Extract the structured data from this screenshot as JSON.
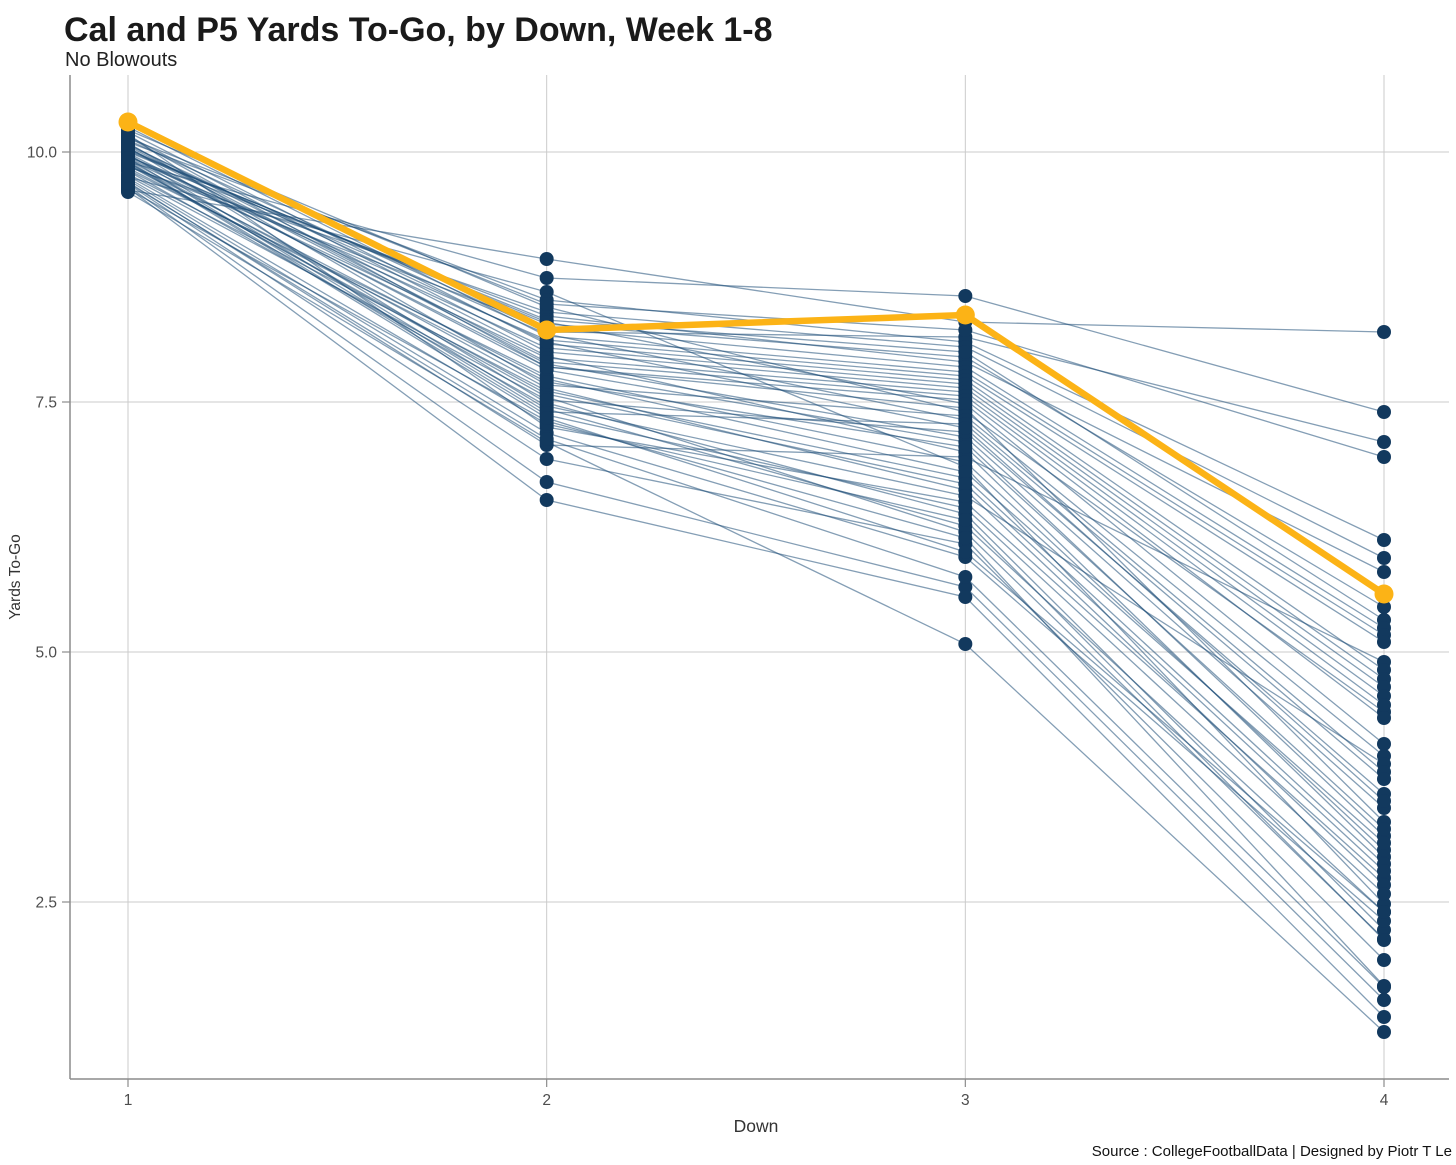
{
  "header": {
    "title": "Cal and P5 Yards To-Go, by Down, Week 1-8",
    "subtitle": "No Blowouts"
  },
  "footer": {
    "source": "Source : CollegeFootballData | Designed by Piotr T Le"
  },
  "colors": {
    "cal_gold": "#FCB316",
    "navy_dot": "#12395E",
    "p5_line": "#1F4E79",
    "grid": "#CBCBCB",
    "axis": "#8C8C8C",
    "title_text": "#1A1A1A",
    "subtitle_text": "#222222",
    "axis_text": "#4D4D4D",
    "axis_title_text": "#333333"
  },
  "chart_data": {
    "type": "line",
    "variant": "slopegraph-multiseries",
    "title": "Cal and P5 Yards To-Go, by Down, Week 1-8",
    "subtitle": "No Blowouts",
    "xlabel": "Down",
    "ylabel": "Yards To-Go",
    "legend": "none",
    "grid": "major gridlines, white background",
    "x": [
      1,
      2,
      3,
      4
    ],
    "x_tick_labels": [
      "1",
      "2",
      "3",
      "4"
    ],
    "y_ticks": [
      10.0,
      7.5,
      5.0,
      2.5
    ],
    "y_tick_labels": [
      "10.0",
      "7.5",
      "5.0",
      "2.5"
    ],
    "ylim": [
      0.73,
      10.77
    ],
    "highlight_series": {
      "name": "Cal",
      "color": "#FCB316",
      "values": [
        10.3,
        8.22,
        8.37,
        5.58
      ]
    },
    "series": [
      {
        "values": [
          10.22,
          8.45,
          7.4,
          4.4
        ]
      },
      {
        "values": [
          9.62,
          8.93,
          8.3,
          8.2
        ]
      },
      {
        "values": [
          10.18,
          7.25,
          6.5,
          2.74
        ]
      },
      {
        "values": [
          9.9,
          8.74,
          8.56,
          7.4
        ]
      },
      {
        "values": [
          10.15,
          7.85,
          7.44,
          3.3
        ]
      },
      {
        "values": [
          9.75,
          8.6,
          6.85,
          2.48
        ]
      },
      {
        "values": [
          10.12,
          8.2,
          8.15,
          7.1
        ]
      },
      {
        "values": [
          9.88,
          7.55,
          6.2,
          2.13
        ]
      },
      {
        "values": [
          10.1,
          8.52,
          8.1,
          6.12
        ]
      },
      {
        "values": [
          9.7,
          7.07,
          6.95,
          4.9
        ]
      },
      {
        "values": [
          10.08,
          7.96,
          7.0,
          2.95
        ]
      },
      {
        "values": [
          9.85,
          8.4,
          8.05,
          5.94
        ]
      },
      {
        "values": [
          10.05,
          7.49,
          6.38,
          2.22
        ]
      },
      {
        "values": [
          9.95,
          8.36,
          7.9,
          5.8
        ]
      },
      {
        "values": [
          10.04,
          7.88,
          7.15,
          3.44
        ]
      },
      {
        "values": [
          9.68,
          6.93,
          6.08,
          1.92
        ]
      },
      {
        "values": [
          10.02,
          8.28,
          7.95,
          5.45
        ]
      },
      {
        "values": [
          9.92,
          7.64,
          6.62,
          2.67
        ]
      },
      {
        "values": [
          10.0,
          8.32,
          8.0,
          5.32
        ]
      },
      {
        "values": [
          9.66,
          6.7,
          5.65,
          1.52
        ]
      },
      {
        "values": [
          9.99,
          7.82,
          7.1,
          3.16
        ]
      },
      {
        "values": [
          9.86,
          8.24,
          7.85,
          5.24
        ]
      },
      {
        "values": [
          10.25,
          8.16,
          7.8,
          5.17
        ]
      },
      {
        "values": [
          9.64,
          6.52,
          5.55,
          1.35
        ]
      },
      {
        "values": [
          9.98,
          7.43,
          6.26,
          2.4
        ]
      },
      {
        "values": [
          9.94,
          8.12,
          7.76,
          5.1
        ]
      },
      {
        "values": [
          9.72,
          7.19,
          5.95,
          2.31
        ]
      },
      {
        "values": [
          10.2,
          8.08,
          7.72,
          4.82
        ]
      },
      {
        "values": [
          9.63,
          7.31,
          6.14,
          1.66
        ]
      },
      {
        "values": [
          9.96,
          8.04,
          7.68,
          4.73
        ]
      },
      {
        "values": [
          9.82,
          7.76,
          6.9,
          3.02
        ]
      },
      {
        "values": [
          10.16,
          8.0,
          7.64,
          4.65
        ]
      },
      {
        "values": [
          9.6,
          7.1,
          5.08,
          1.2
        ]
      },
      {
        "values": [
          9.93,
          7.94,
          7.6,
          4.56
        ]
      },
      {
        "values": [
          9.78,
          7.61,
          6.74,
          2.88
        ]
      },
      {
        "values": [
          10.06,
          7.9,
          7.56,
          4.47
        ]
      },
      {
        "values": [
          9.91,
          7.37,
          6.44,
          2.58
        ]
      },
      {
        "values": [
          10.14,
          8.48,
          8.22,
          6.95
        ]
      },
      {
        "values": [
          9.89,
          7.73,
          6.8,
          3.09
        ]
      },
      {
        "values": [
          9.97,
          7.85,
          7.52,
          4.34
        ]
      },
      {
        "values": [
          9.74,
          7.28,
          6.32,
          2.12
        ]
      },
      {
        "values": [
          10.01,
          8.3,
          7.48,
          4.08
        ]
      },
      {
        "values": [
          9.87,
          7.58,
          6.68,
          2.81
        ]
      },
      {
        "values": [
          10.09,
          7.67,
          7.36,
          3.96
        ]
      },
      {
        "values": [
          9.81,
          7.46,
          6.56,
          3.88
        ]
      },
      {
        "values": [
          9.69,
          7.13,
          5.75,
          1.65
        ]
      },
      {
        "values": [
          10.03,
          8.18,
          7.32,
          3.8
        ]
      },
      {
        "values": [
          9.84,
          7.7,
          7.05,
          3.23
        ]
      },
      {
        "values": [
          9.94,
          7.4,
          7.28,
          3.73
        ]
      },
      {
        "values": [
          9.76,
          7.52,
          7.2,
          3.58
        ]
      },
      {
        "values": [
          10.07,
          8.1,
          7.24,
          3.51
        ]
      },
      {
        "values": [
          9.9,
          7.34,
          6.0,
          2.4
        ]
      }
    ]
  }
}
